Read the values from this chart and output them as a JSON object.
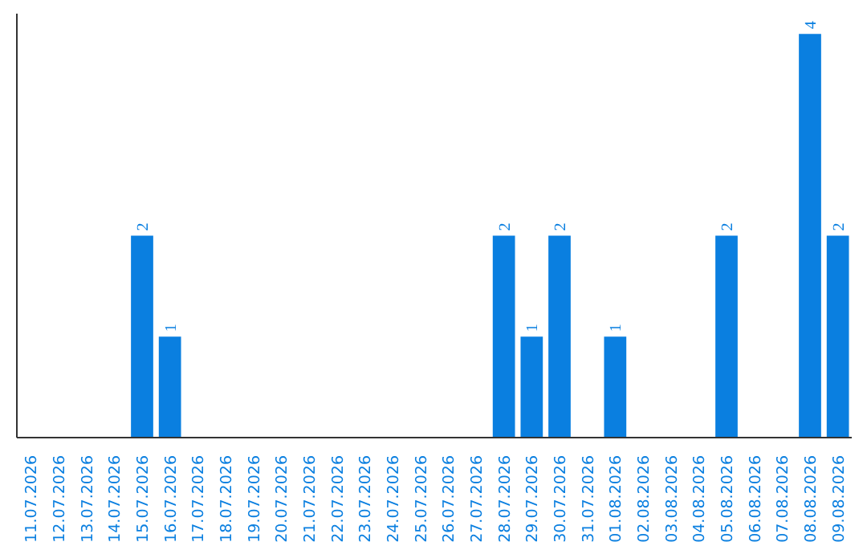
{
  "chart_data": {
    "type": "bar",
    "categories": [
      "11.07.2026",
      "12.07.2026",
      "13.07.2026",
      "14.07.2026",
      "15.07.2026",
      "16.07.2026",
      "17.07.2026",
      "18.07.2026",
      "19.07.2026",
      "20.07.2026",
      "21.07.2026",
      "22.07.2026",
      "23.07.2026",
      "24.07.2026",
      "25.07.2026",
      "26.07.2026",
      "27.07.2026",
      "28.07.2026",
      "29.07.2026",
      "30.07.2026",
      "31.07.2026",
      "01.08.2026",
      "02.08.2026",
      "03.08.2026",
      "04.08.2026",
      "05.08.2026",
      "06.08.2026",
      "07.08.2026",
      "08.08.2026",
      "09.08.2026"
    ],
    "values": [
      0,
      0,
      0,
      0,
      2,
      1,
      0,
      0,
      0,
      0,
      0,
      0,
      0,
      0,
      0,
      0,
      0,
      2,
      1,
      2,
      0,
      1,
      0,
      0,
      0,
      2,
      0,
      0,
      4,
      2
    ],
    "value_labels": [
      null,
      null,
      null,
      null,
      "2",
      "1",
      null,
      null,
      null,
      null,
      null,
      null,
      null,
      null,
      null,
      null,
      null,
      "2",
      "1",
      "2",
      null,
      "1",
      null,
      null,
      null,
      "2",
      null,
      null,
      "4",
      "2"
    ],
    "color": "#0a7fe0"
  }
}
